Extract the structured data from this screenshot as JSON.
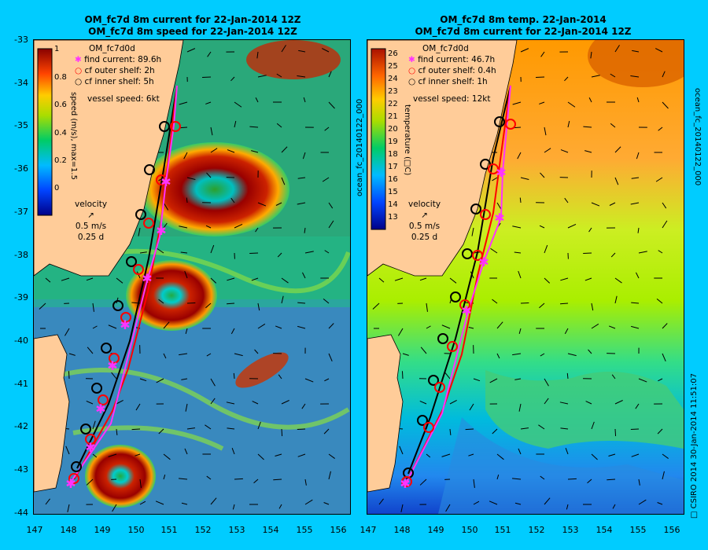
{
  "left_panel": {
    "title_line1": "OM_fc7d 8m current for 22-Jan-2014 12Z",
    "title_line2": "OM_fc7d 8m speed for 22-Jan-2014 12Z",
    "model": "OM_fc7d0d",
    "legend": [
      {
        "label": "find current: 89.6h",
        "color": "#ff33ff",
        "symbol": "star"
      },
      {
        "label": "cf outer shelf: 2h",
        "color": "#ff0000",
        "symbol": "circle"
      },
      {
        "label": "cf inner shelf: 5h",
        "color": "#000000",
        "symbol": "circle"
      }
    ],
    "vessel_speed": "vessel speed: 6kt",
    "colorbar_label": "speed (m/s),  max=1.5",
    "colorbar_ticks": [
      "1",
      "0.8",
      "0.6",
      "0.4",
      "0.2",
      "0"
    ],
    "velocity_key": [
      "velocity",
      "0.5 m/s",
      "0.25 d"
    ]
  },
  "right_panel": {
    "title_line1": "OM_fc7d 8m temp. 22-Jan-2014",
    "title_line2": "OM_fc7d 8m current for 22-Jan-2014 12Z",
    "model": "OM_fc7d0d",
    "legend": [
      {
        "label": "find current: 46.7h",
        "color": "#ff33ff",
        "symbol": "star"
      },
      {
        "label": "cf outer shelf: 0.4h",
        "color": "#ff0000",
        "symbol": "circle"
      },
      {
        "label": "cf inner shelf: 1h",
        "color": "#000000",
        "symbol": "circle"
      }
    ],
    "vessel_speed": "vessel speed: 12kt",
    "colorbar_label": "temperature (□C)",
    "colorbar_ticks": [
      "26",
      "25",
      "24",
      "23",
      "22",
      "21",
      "20",
      "19",
      "18",
      "17",
      "16",
      "15",
      "14",
      "13"
    ],
    "velocity_key": [
      "velocity",
      "0.5 m/s",
      "0.25 d"
    ]
  },
  "axes": {
    "y_ticks": [
      "-33",
      "-34",
      "-35",
      "-36",
      "-37",
      "-38",
      "-39",
      "-40",
      "-41",
      "-42",
      "-43",
      "-44"
    ],
    "x_ticks": [
      "147",
      "148",
      "149",
      "150",
      "151",
      "152",
      "153",
      "154",
      "155",
      "156"
    ]
  },
  "side_text": {
    "left_ocean_label": "ocean_fc_20140122_000",
    "right_ocean_label": "ocean_fc_20140122_000",
    "footer": "□ CSIRO 2014   30-Jan-2014 11:51:07"
  },
  "colors": {
    "background": "#00ccff",
    "land": "#ffcc99",
    "find_current": "#ff33ff",
    "outer_shelf": "#ff0000",
    "inner_shelf": "#000000"
  }
}
